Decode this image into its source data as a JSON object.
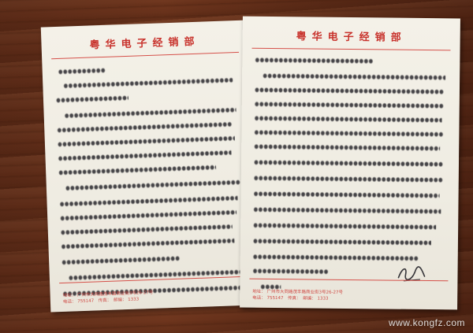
{
  "letterhead": {
    "title": "粤华电子经销部",
    "address_prefix": "地址：",
    "address": "广州市大同路茂丰路商业街3号26-27号",
    "phone_prefix": "电话：",
    "phone": "755147",
    "fax_prefix": "传真：",
    "postcode_prefix": "邮编：",
    "postcode": "1333"
  },
  "watermark": "www.kongfz.com",
  "colors": {
    "letterhead_red": "#c8322c",
    "ink": "#16151c",
    "paper": "#f1eee5",
    "wood": "#5e2c18"
  }
}
